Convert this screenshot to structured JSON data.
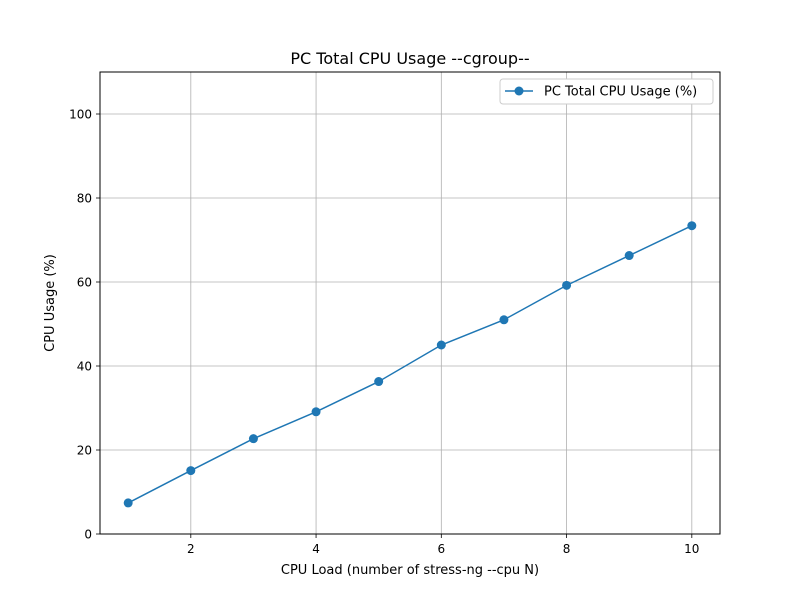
{
  "chart_data": {
    "type": "line",
    "title": "PC Total CPU Usage --cgroup--",
    "xlabel": "CPU Load (number of stress-ng --cpu N)",
    "ylabel": "CPU Usage (%)",
    "xlim": [
      0.55,
      10.45
    ],
    "ylim": [
      0,
      110
    ],
    "xticks": [
      2,
      4,
      6,
      8,
      10
    ],
    "yticks": [
      0,
      20,
      40,
      60,
      80,
      100
    ],
    "grid": true,
    "legend_position": "top-right",
    "series": [
      {
        "name": "PC Total CPU Usage (%)",
        "color": "#1f77b4",
        "marker": "circle",
        "x": [
          1,
          2,
          3,
          4,
          5,
          6,
          7,
          8,
          9,
          10
        ],
        "y": [
          7.4,
          15.1,
          22.7,
          29.1,
          36.3,
          45.0,
          51.0,
          59.2,
          66.3,
          73.4
        ]
      }
    ]
  }
}
